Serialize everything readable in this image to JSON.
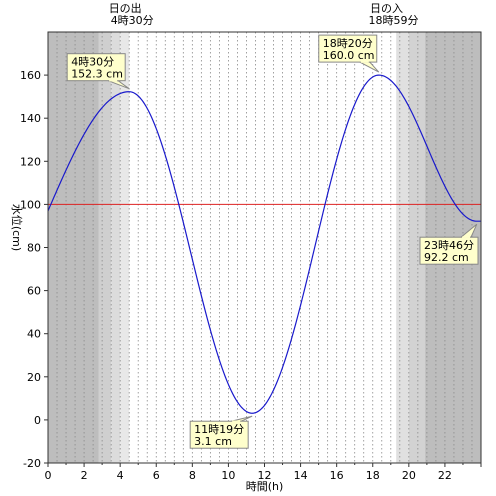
{
  "chart_data": {
    "type": "line",
    "title": "",
    "xlabel": "時間(h)",
    "ylabel": "水位(cm)",
    "xlim": [
      0,
      24
    ],
    "ylim": [
      -20,
      180
    ],
    "x_ticks": [
      0,
      2,
      4,
      6,
      8,
      10,
      12,
      14,
      16,
      18,
      20,
      22
    ],
    "y_ticks": [
      -20,
      0,
      20,
      40,
      60,
      80,
      100,
      120,
      140,
      160
    ],
    "reference_line": {
      "y": 100,
      "color": "#dd2222"
    },
    "line_color": "#1a1acc",
    "extremes": [
      {
        "time": "4時30分",
        "x": 4.5,
        "y": 152.3,
        "value": "152.3 cm"
      },
      {
        "time": "11時19分",
        "x": 11.3167,
        "y": 3.1,
        "value": "3.1 cm"
      },
      {
        "time": "18時20分",
        "x": 18.3333,
        "y": 160.0,
        "value": "160.0 cm"
      },
      {
        "time": "23時46分",
        "x": 23.7667,
        "y": 92.2,
        "value": "92.2 cm"
      }
    ],
    "start_level": 97,
    "sun": {
      "sunrise": {
        "label": "日の出",
        "time": "4時30分",
        "x": 4.5
      },
      "sunset": {
        "label": "日の入",
        "time": "18時59分",
        "x": 18.9833
      }
    },
    "shading": [
      {
        "from": 0,
        "to": 2.8,
        "color": "#bdbdbd"
      },
      {
        "from": 2.8,
        "to": 3.5,
        "color": "#cfcfcf"
      },
      {
        "from": 3.5,
        "to": 4.0,
        "color": "#dcdcdc"
      },
      {
        "from": 4.0,
        "to": 4.5,
        "color": "#e8e8e8"
      },
      {
        "from": 19.3,
        "to": 20.0,
        "color": "#e0e0e0"
      },
      {
        "from": 20.0,
        "to": 20.9,
        "color": "#d2d2d2"
      },
      {
        "from": 20.9,
        "to": 24,
        "color": "#bdbdbd"
      }
    ]
  }
}
